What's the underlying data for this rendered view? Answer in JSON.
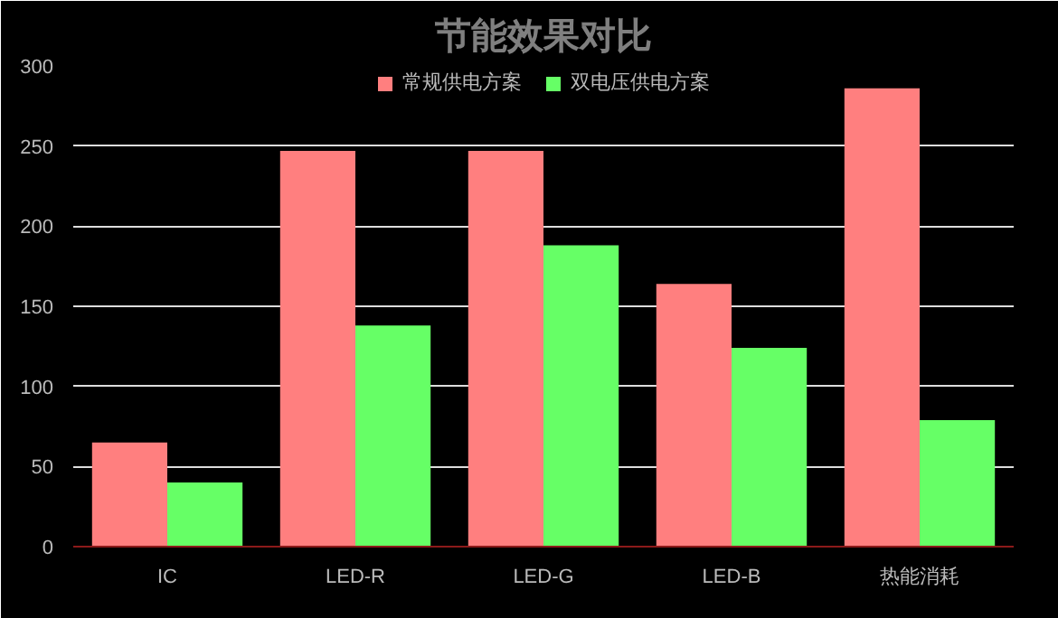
{
  "chart_data": {
    "type": "bar",
    "title": "节能效果对比",
    "categories": [
      "IC",
      "LED-R",
      "LED-G",
      "LED-B",
      "热能消耗"
    ],
    "series": [
      {
        "name": "常规供电方案",
        "color": "#ff7f7f",
        "values": [
          65,
          247,
          247,
          164,
          286
        ]
      },
      {
        "name": "双电压供电方案",
        "color": "#66ff66",
        "values": [
          40,
          138,
          188,
          124,
          79
        ]
      }
    ],
    "ylim": [
      0,
      300
    ],
    "yticks": [
      0,
      50,
      100,
      150,
      200,
      250,
      300
    ],
    "grid": "y",
    "legend": "top"
  }
}
